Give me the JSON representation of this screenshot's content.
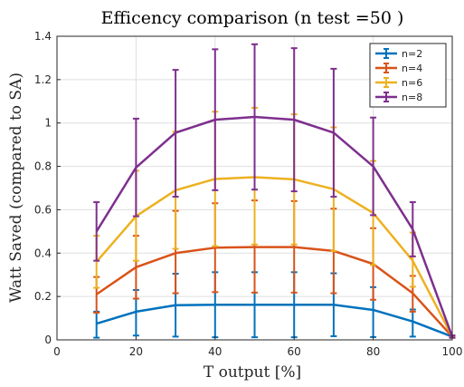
{
  "chart_data": {
    "type": "line",
    "title": "Efficency comparison (n test =50 )",
    "xlabel": "T output [%]",
    "ylabel": "Watt Saved (compared to SA)",
    "xlim": [
      0,
      100
    ],
    "ylim": [
      0,
      1.4
    ],
    "x_ticks": [
      0,
      20,
      40,
      60,
      80,
      100
    ],
    "y_ticks": [
      0,
      0.2,
      0.4,
      0.6,
      0.8,
      1,
      1.2,
      1.4
    ],
    "grid": true,
    "legend_position": "top-right",
    "x": [
      10,
      20,
      30,
      40,
      50,
      60,
      70,
      80,
      90,
      100
    ],
    "series": [
      {
        "name": "n=2",
        "color": "#0072BD",
        "values": [
          0.075,
          0.13,
          0.16,
          0.162,
          0.162,
          0.162,
          0.162,
          0.138,
          0.085,
          0.015
        ],
        "err_lower": [
          0.065,
          0.11,
          0.145,
          0.15,
          0.15,
          0.15,
          0.145,
          0.125,
          0.07,
          0.005
        ],
        "err_upper": [
          0.055,
          0.1,
          0.145,
          0.15,
          0.15,
          0.15,
          0.145,
          0.105,
          0.055,
          0.005
        ]
      },
      {
        "name": "n=4",
        "color": "#D95319",
        "values": [
          0.21,
          0.335,
          0.4,
          0.425,
          0.428,
          0.428,
          0.41,
          0.35,
          0.215,
          0.015
        ],
        "err_lower": [
          0.085,
          0.145,
          0.185,
          0.205,
          0.21,
          0.21,
          0.195,
          0.165,
          0.085,
          0.005
        ],
        "err_upper": [
          0.08,
          0.145,
          0.195,
          0.205,
          0.215,
          0.212,
          0.195,
          0.165,
          0.08,
          0.005
        ]
      },
      {
        "name": "n=6",
        "color": "#EDB120",
        "values": [
          0.36,
          0.57,
          0.69,
          0.742,
          0.75,
          0.74,
          0.695,
          0.585,
          0.365,
          0.015
        ],
        "err_lower": [
          0.12,
          0.205,
          0.27,
          0.31,
          0.31,
          0.3,
          0.285,
          0.24,
          0.12,
          0.005
        ],
        "err_upper": [
          0.12,
          0.21,
          0.27,
          0.31,
          0.32,
          0.3,
          0.285,
          0.24,
          0.13,
          0.005
        ]
      },
      {
        "name": "n=8",
        "color": "#7E2F8E",
        "values": [
          0.5,
          0.795,
          0.955,
          1.015,
          1.028,
          1.015,
          0.955,
          0.8,
          0.51,
          0.015
        ],
        "err_lower": [
          0.135,
          0.225,
          0.295,
          0.325,
          0.335,
          0.33,
          0.295,
          0.225,
          0.125,
          0.005
        ],
        "err_upper": [
          0.135,
          0.225,
          0.29,
          0.325,
          0.335,
          0.33,
          0.295,
          0.225,
          0.125,
          0.005
        ]
      }
    ]
  }
}
